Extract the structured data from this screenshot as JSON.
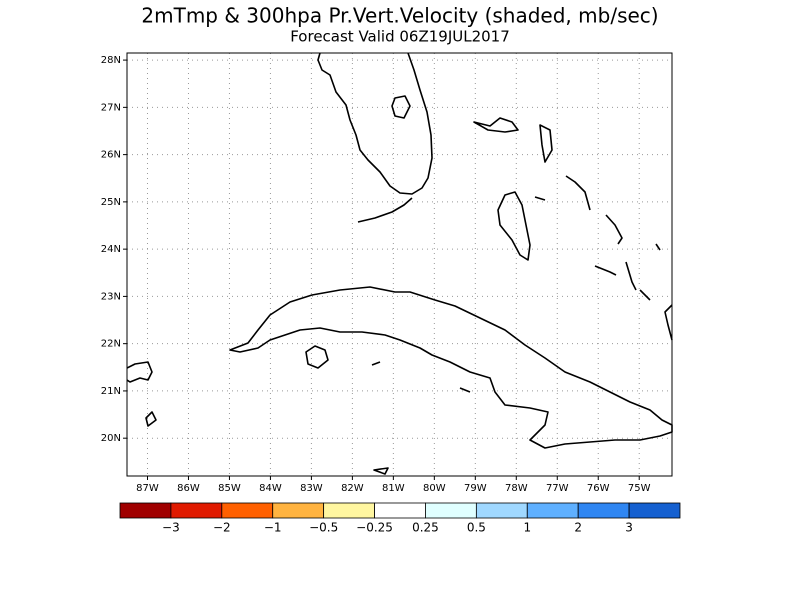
{
  "header": {
    "title": "2mTmp & 300hpa Pr.Vert.Velocity (shaded, mb/sec)",
    "subtitle": "Forecast Valid  06Z19JUL2017"
  },
  "map": {
    "lonlim": [
      -87.5,
      -74.2
    ],
    "latlim": [
      19.2,
      28.15
    ],
    "grid": true,
    "lonticks": [
      {
        "value": -87,
        "label": "87W"
      },
      {
        "value": -86,
        "label": "86W"
      },
      {
        "value": -85,
        "label": "85W"
      },
      {
        "value": -84,
        "label": "84W"
      },
      {
        "value": -83,
        "label": "83W"
      },
      {
        "value": -82,
        "label": "82W"
      },
      {
        "value": -81,
        "label": "81W"
      },
      {
        "value": -80,
        "label": "80W"
      },
      {
        "value": -79,
        "label": "79W"
      },
      {
        "value": -78,
        "label": "78W"
      },
      {
        "value": -77,
        "label": "77W"
      },
      {
        "value": -76,
        "label": "76W"
      },
      {
        "value": -75,
        "label": "75W"
      }
    ],
    "latticks": [
      {
        "value": 20,
        "label": "20N"
      },
      {
        "value": 21,
        "label": "21N"
      },
      {
        "value": 22,
        "label": "22N"
      },
      {
        "value": 23,
        "label": "23N"
      },
      {
        "value": 24,
        "label": "24N"
      },
      {
        "value": 25,
        "label": "25N"
      },
      {
        "value": 26,
        "label": "26N"
      },
      {
        "value": 27,
        "label": "27N"
      },
      {
        "value": 28,
        "label": "28N"
      }
    ]
  },
  "colorbar": {
    "colors": [
      "#a00000",
      "#e01a00",
      "#ff6000",
      "#ffb340",
      "#fff6a0",
      "#ffffff",
      "#e0ffff",
      "#a0d8ff",
      "#5fb0ff",
      "#2f86f2",
      "#1560d0"
    ],
    "levels": [
      {
        "value": -3,
        "label": "−3"
      },
      {
        "value": -2,
        "label": "−2"
      },
      {
        "value": -1,
        "label": "−1"
      },
      {
        "value": -0.5,
        "label": "−0.5"
      },
      {
        "value": -0.25,
        "label": "−0.25"
      },
      0.25,
      0.5,
      1,
      2,
      3
    ]
  }
}
